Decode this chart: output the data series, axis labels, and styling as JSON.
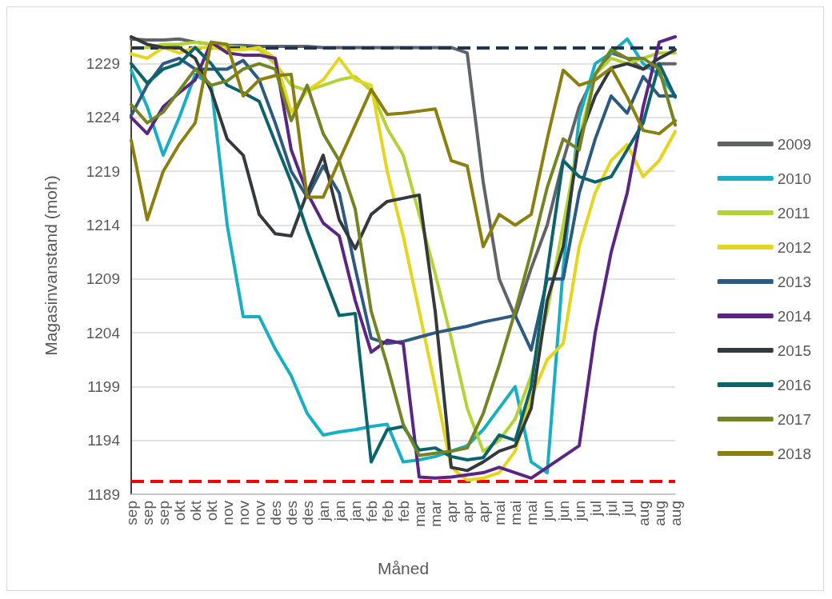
{
  "chart_data": {
    "type": "line",
    "xlabel": "Måned",
    "ylabel": "Magasinvanstand (moh)",
    "categories": [
      "sep",
      "sep",
      "sep",
      "okt",
      "okt",
      "okt",
      "nov",
      "nov",
      "nov",
      "des",
      "des",
      "des",
      "jan",
      "jan",
      "jan",
      "feb",
      "feb",
      "feb",
      "mar",
      "mar",
      "apr",
      "apr",
      "apr",
      "mai",
      "mai",
      "mai",
      "jun",
      "jun",
      "jun",
      "jul",
      "jul",
      "jul",
      "aug",
      "aug",
      "aug"
    ],
    "ylim": [
      1189,
      1231.5
    ],
    "yticks": [
      1189,
      1194,
      1199,
      1204,
      1209,
      1214,
      1219,
      1224,
      1229
    ],
    "grid": "y",
    "legend": "right",
    "marker": "none",
    "line_style": "solid",
    "ref_lines": [
      {
        "axis": "y",
        "value": 1230.5,
        "color": "#1f3550",
        "line_style": "dashed"
      },
      {
        "axis": "y",
        "value": 1190.2,
        "color": "#ff0000",
        "line_style": "dashed"
      }
    ],
    "series": [
      {
        "name": "2009",
        "color": "#5f6468",
        "values": [
          1231.3,
          1231.2,
          1231.2,
          1231.3,
          1231,
          1230.8,
          1230.7,
          1230.7,
          1230.6,
          1230.6,
          1230.6,
          1230.6,
          1230.5,
          1230.5,
          1230.5,
          1230.5,
          1230.5,
          1230.5,
          1230.5,
          1230.5,
          1230.5,
          1230,
          1218,
          1209,
          1205.5,
          1210,
          1214,
          1220,
          1225,
          1228,
          1230,
          1229.5,
          1228.5,
          1229,
          1229
        ]
      },
      {
        "name": "2010",
        "color": "#17afc4",
        "values": [
          1228.4,
          1225,
          1220.5,
          1224,
          1228,
          1227,
          1214,
          1205.5,
          1205.5,
          1202.5,
          1200,
          1196.5,
          1194.5,
          1194.8,
          1195,
          1195.3,
          1195.5,
          1192,
          1192.2,
          1192.5,
          1193,
          1193.5,
          1195,
          1197,
          1199,
          1192,
          1191,
          1210,
          1224,
          1229,
          1230,
          1231.3,
          1229,
          1228,
          1226
        ]
      },
      {
        "name": "2011",
        "color": "#b3d334",
        "values": [
          1230.5,
          1230.5,
          1230.8,
          1230.8,
          1231,
          1230.8,
          1230.6,
          1230.5,
          1230.3,
          1229,
          1227,
          1226.5,
          1227,
          1227.5,
          1227.8,
          1226.5,
          1223,
          1220.5,
          1215,
          1209.5,
          1203.5,
          1197,
          1193,
          1194,
          1196,
          1200,
          1206,
          1214,
          1222,
          1228,
          1229.5,
          1229,
          1229.5,
          1230,
          1230
        ]
      },
      {
        "name": "2012",
        "color": "#e6d51a",
        "values": [
          1229.9,
          1229.5,
          1230.5,
          1230,
          1230.5,
          1230.5,
          1230.3,
          1230.3,
          1230.5,
          1229.5,
          1224.5,
          1226.5,
          1227.5,
          1229.5,
          1227.5,
          1227,
          1219,
          1213,
          1206,
          1199,
          1191.5,
          1190.3,
          1190.5,
          1191,
          1193,
          1198,
          1201.5,
          1203,
          1212,
          1217,
          1220,
          1221.5,
          1218.5,
          1220,
          1222.7
        ]
      },
      {
        "name": "2013",
        "color": "#2c5a80",
        "values": [
          1224.2,
          1227,
          1229,
          1229.5,
          1228.5,
          1228.5,
          1228.5,
          1229.3,
          1227.5,
          1223.5,
          1219,
          1216.6,
          1219.5,
          1217,
          1210,
          1203.5,
          1203,
          1203.2,
          1203.6,
          1204,
          1204.3,
          1204.6,
          1205,
          1205.3,
          1205.6,
          1202.4,
          1209,
          1209,
          1217,
          1222,
          1226,
          1224.4,
          1227.8,
          1226,
          1226
        ]
      },
      {
        "name": "2014",
        "color": "#5b2683",
        "values": [
          1224,
          1222.5,
          1225,
          1226.3,
          1227.5,
          1231,
          1230,
          1229.8,
          1229.8,
          1229.5,
          1221,
          1217,
          1214.2,
          1213,
          1207,
          1202.2,
          1203.3,
          1203,
          1190.6,
          1190.5,
          1190.6,
          1190.8,
          1191,
          1191.5,
          1191,
          1190.5,
          1191.5,
          1192.5,
          1193.5,
          1204,
          1211.5,
          1217,
          1225,
          1231,
          1231.5
        ]
      },
      {
        "name": "2015",
        "color": "#33393d",
        "values": [
          1231.5,
          1230.8,
          1230.5,
          1230.5,
          1229.5,
          1226.5,
          1222,
          1220.5,
          1215,
          1213.2,
          1213,
          1217,
          1220.5,
          1214.5,
          1211.8,
          1215,
          1216.2,
          1216.5,
          1216.8,
          1206,
          1191.5,
          1191.2,
          1192,
          1193,
          1193.5,
          1197,
          1207,
          1212,
          1222,
          1226,
          1228.6,
          1229,
          1228.5,
          1229.5,
          1230.3
        ]
      },
      {
        "name": "2016",
        "color": "#0b646c",
        "values": [
          1229,
          1227.2,
          1228.5,
          1229,
          1230.5,
          1229,
          1227,
          1226.3,
          1225.5,
          1221.7,
          1218,
          1213.5,
          1209.5,
          1205.6,
          1205.8,
          1192,
          1195,
          1195.3,
          1193.1,
          1193.3,
          1192.5,
          1192.2,
          1192.4,
          1194.5,
          1194,
          1199,
          1209.7,
          1220,
          1218.5,
          1218,
          1218.5,
          1221,
          1223.5,
          1229,
          1225.9
        ]
      },
      {
        "name": "2017",
        "color": "#738523",
        "values": [
          1225.2,
          1223.5,
          1224.5,
          1226.5,
          1228.5,
          1227,
          1227.4,
          1228.5,
          1229,
          1228.5,
          1223.7,
          1227,
          1222.5,
          1220,
          1215.5,
          1206,
          1201,
          1195.5,
          1192.6,
          1192.8,
          1193,
          1193.3,
          1196.5,
          1201,
          1206,
          1211.5,
          1217.5,
          1222,
          1221,
          1228,
          1230.3,
          1229.5,
          1229.5,
          1228.5,
          1223.3
        ]
      },
      {
        "name": "2018",
        "color": "#8b7f0e",
        "values": [
          1221.9,
          1214.5,
          1219,
          1221.5,
          1223.5,
          1231,
          1230.8,
          1226,
          1227.5,
          1227.9,
          1228,
          1216.6,
          1216.6,
          1220,
          1223.3,
          1226.6,
          1224.3,
          1224.4,
          1224.6,
          1224.8,
          1220,
          1219.5,
          1212,
          1215,
          1214,
          1215,
          1222,
          1228.4,
          1227,
          1227.5,
          1228.6,
          1225.9,
          1222.8,
          1222.5,
          1223.7
        ]
      }
    ]
  }
}
